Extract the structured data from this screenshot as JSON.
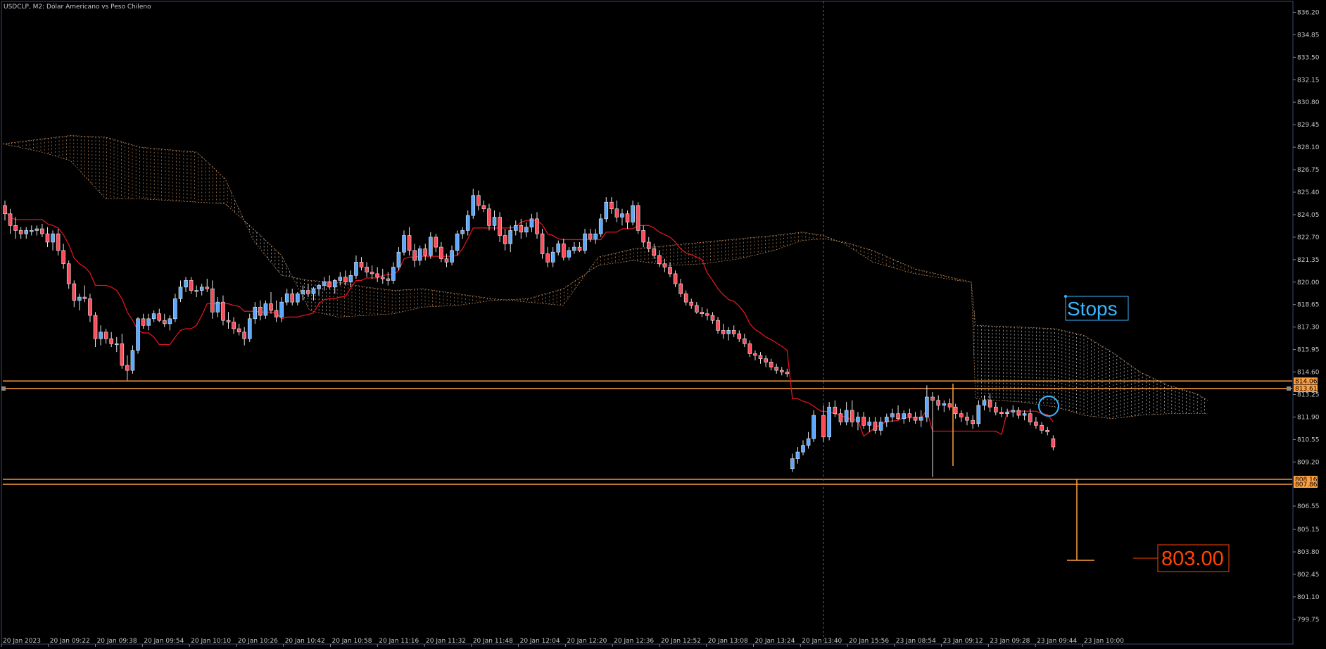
{
  "window": {
    "title": "USDCLP, M2:  Dólar Americano vs Peso Chileno"
  },
  "colors": {
    "background": "#000000",
    "frame": "#3a4a78",
    "bull_candle": "#5aa8ff",
    "bear_candle": "#ff4a5a",
    "kijun_line": "#e0141e",
    "cloud_dots": "#c89060",
    "cloud_dots_light": "#d8d8d8",
    "level_line": "#ffa040",
    "stops_label": "#3ab6ff",
    "target_label": "#ff4500",
    "vertical_separator": "#3c6cb4"
  },
  "price_axis": {
    "ticks": [
      "836.20",
      "834.85",
      "833.50",
      "832.15",
      "830.80",
      "829.45",
      "828.10",
      "826.75",
      "825.40",
      "824.05",
      "822.70",
      "821.35",
      "820.00",
      "818.65",
      "817.30",
      "815.95",
      "814.60",
      "813.25",
      "811.90",
      "810.55",
      "809.20",
      "806.55",
      "805.15",
      "803.80",
      "802.45",
      "801.10",
      "799.75"
    ],
    "level_labels": [
      "814.06",
      "813.61",
      "808.16",
      "807.86"
    ]
  },
  "time_axis": {
    "ticks": [
      "20 Jan 2023",
      "20 Jan 09:22",
      "20 Jan 09:38",
      "20 Jan 09:54",
      "20 Jan 10:10",
      "20 Jan 10:26",
      "20 Jan 10:42",
      "20 Jan 10:58",
      "20 Jan 11:16",
      "20 Jan 11:32",
      "20 Jan 11:48",
      "20 Jan 12:04",
      "20 Jan 12:20",
      "20 Jan 12:36",
      "20 Jan 12:52",
      "20 Jan 13:08",
      "20 Jan 13:24",
      "20 Jan 13:40",
      "20 Jan 15:56",
      "23 Jan 08:54",
      "23 Jan 09:12",
      "23 Jan 09:28",
      "23 Jan 09:44",
      "23 Jan 10:00"
    ]
  },
  "annotations": {
    "stops_label": "Stops",
    "target_label": "803.00"
  },
  "chart_data": {
    "type": "candlestick",
    "symbol": "USDCLP",
    "timeframe": "M2",
    "ylim": [
      798.9,
      836.6
    ],
    "horizontal_levels": [
      814.06,
      813.61,
      808.16,
      807.86
    ],
    "target_price": 803.0,
    "candles": [
      [
        824.6,
        824.9,
        823.7,
        824.1
      ],
      [
        824.1,
        824.4,
        822.9,
        823.4
      ],
      [
        823.4,
        823.9,
        822.6,
        823.1
      ],
      [
        823.1,
        823.3,
        822.6,
        822.9
      ],
      [
        822.9,
        823.3,
        822.6,
        823.1
      ],
      [
        823.1,
        823.4,
        822.8,
        823.1
      ],
      [
        823.1,
        823.4,
        822.8,
        823.2
      ],
      [
        823.2,
        823.5,
        822.7,
        822.9
      ],
      [
        822.9,
        823.3,
        822.1,
        822.4
      ],
      [
        822.4,
        823.1,
        821.9,
        822.9
      ],
      [
        822.9,
        823.2,
        821.6,
        821.9
      ],
      [
        821.9,
        822.3,
        820.8,
        821.1
      ],
      [
        821.1,
        821.3,
        819.6,
        819.9
      ],
      [
        819.9,
        820.1,
        818.5,
        818.9
      ],
      [
        818.9,
        819.3,
        818.3,
        819.1
      ],
      [
        819.1,
        819.8,
        818.8,
        819.0
      ],
      [
        819.0,
        819.3,
        817.6,
        818.0
      ],
      [
        818.0,
        818.2,
        816.1,
        816.6
      ],
      [
        816.6,
        817.4,
        816.2,
        817.0
      ],
      [
        817.0,
        817.2,
        816.3,
        816.6
      ],
      [
        816.6,
        817.0,
        816.1,
        816.3
      ],
      [
        816.3,
        816.7,
        815.8,
        816.3
      ],
      [
        816.3,
        816.9,
        814.8,
        815.0
      ],
      [
        815.0,
        815.6,
        814.1,
        814.7
      ],
      [
        814.7,
        816.2,
        814.5,
        815.9
      ],
      [
        815.9,
        817.9,
        815.7,
        817.8
      ],
      [
        817.8,
        818.1,
        817.2,
        817.4
      ],
      [
        817.4,
        818.1,
        817.1,
        817.8
      ],
      [
        817.8,
        818.3,
        817.6,
        818.1
      ],
      [
        818.1,
        818.4,
        817.6,
        817.7
      ],
      [
        817.7,
        818.1,
        817.3,
        817.5
      ],
      [
        817.5,
        818.0,
        817.1,
        817.8
      ],
      [
        817.8,
        819.3,
        817.6,
        819.0
      ],
      [
        819.0,
        820.1,
        818.8,
        819.7
      ],
      [
        819.7,
        820.3,
        819.4,
        820.1
      ],
      [
        820.1,
        820.3,
        819.3,
        819.5
      ],
      [
        819.5,
        819.8,
        819.1,
        819.5
      ],
      [
        819.5,
        819.9,
        819.2,
        819.7
      ],
      [
        819.7,
        820.2,
        819.4,
        819.6
      ],
      [
        819.6,
        820.1,
        817.8,
        818.2
      ],
      [
        818.2,
        819.1,
        817.9,
        818.8
      ],
      [
        818.8,
        819.2,
        817.4,
        817.7
      ],
      [
        817.7,
        818.2,
        817.2,
        817.6
      ],
      [
        817.6,
        817.9,
        816.9,
        817.2
      ],
      [
        817.2,
        817.5,
        816.8,
        817.0
      ],
      [
        817.0,
        817.3,
        816.2,
        816.6
      ],
      [
        816.6,
        818.1,
        816.4,
        817.8
      ],
      [
        817.8,
        818.8,
        817.5,
        818.5
      ],
      [
        818.5,
        818.9,
        817.7,
        818.0
      ],
      [
        818.0,
        818.9,
        817.8,
        818.7
      ],
      [
        818.7,
        819.4,
        818.1,
        818.3
      ],
      [
        818.3,
        818.9,
        817.6,
        817.9
      ],
      [
        817.9,
        819.1,
        817.6,
        818.8
      ],
      [
        818.8,
        819.6,
        818.6,
        819.3
      ],
      [
        819.3,
        819.6,
        818.6,
        818.8
      ],
      [
        818.8,
        819.4,
        818.6,
        819.3
      ],
      [
        819.3,
        819.8,
        818.9,
        819.5
      ],
      [
        819.5,
        819.9,
        819.1,
        819.3
      ],
      [
        819.3,
        819.7,
        818.9,
        819.6
      ],
      [
        819.6,
        819.9,
        819.2,
        819.8
      ],
      [
        819.8,
        820.3,
        819.5,
        820.0
      ],
      [
        820.0,
        820.4,
        819.6,
        819.7
      ],
      [
        819.7,
        820.2,
        819.3,
        820.1
      ],
      [
        820.1,
        820.6,
        819.8,
        820.3
      ],
      [
        820.3,
        820.7,
        819.8,
        820.0
      ],
      [
        820.0,
        820.7,
        819.7,
        820.4
      ],
      [
        820.4,
        821.6,
        820.2,
        821.2
      ],
      [
        821.2,
        821.5,
        820.7,
        820.9
      ],
      [
        820.9,
        821.2,
        820.3,
        820.6
      ],
      [
        820.6,
        821.0,
        820.2,
        820.5
      ],
      [
        820.5,
        820.9,
        820.0,
        820.3
      ],
      [
        820.3,
        820.8,
        819.9,
        820.2
      ],
      [
        820.2,
        820.6,
        819.8,
        820.1
      ],
      [
        820.1,
        821.2,
        819.9,
        820.9
      ],
      [
        820.9,
        822.1,
        820.7,
        821.8
      ],
      [
        821.8,
        823.1,
        821.6,
        822.8
      ],
      [
        822.8,
        823.3,
        821.6,
        821.9
      ],
      [
        821.9,
        822.3,
        820.9,
        821.3
      ],
      [
        821.3,
        822.2,
        821.0,
        822.0
      ],
      [
        822.0,
        822.3,
        821.3,
        821.6
      ],
      [
        821.6,
        823.0,
        821.4,
        822.7
      ],
      [
        822.7,
        822.9,
        821.8,
        822.1
      ],
      [
        822.1,
        822.4,
        821.2,
        821.4
      ],
      [
        821.4,
        821.7,
        820.9,
        821.2
      ],
      [
        821.2,
        822.2,
        821.0,
        821.9
      ],
      [
        821.9,
        823.1,
        821.6,
        822.9
      ],
      [
        822.9,
        823.3,
        822.6,
        823.1
      ],
      [
        823.1,
        824.3,
        822.8,
        824.0
      ],
      [
        824.0,
        825.6,
        823.8,
        825.2
      ],
      [
        825.2,
        825.5,
        824.3,
        824.6
      ],
      [
        824.6,
        824.9,
        824.2,
        824.4
      ],
      [
        824.4,
        824.7,
        823.1,
        823.4
      ],
      [
        823.4,
        824.3,
        823.1,
        823.9
      ],
      [
        823.9,
        824.2,
        822.4,
        822.8
      ],
      [
        822.8,
        823.2,
        821.9,
        822.3
      ],
      [
        822.3,
        823.4,
        821.8,
        823.1
      ],
      [
        823.1,
        823.7,
        822.8,
        823.4
      ],
      [
        823.4,
        823.8,
        822.6,
        823.0
      ],
      [
        823.0,
        823.6,
        822.7,
        823.3
      ],
      [
        823.3,
        824.1,
        823.0,
        823.8
      ],
      [
        823.8,
        824.2,
        822.6,
        822.9
      ],
      [
        822.9,
        823.2,
        821.4,
        821.7
      ],
      [
        821.7,
        822.1,
        820.9,
        821.2
      ],
      [
        821.2,
        822.1,
        820.9,
        821.8
      ],
      [
        821.8,
        822.5,
        821.6,
        822.3
      ],
      [
        822.3,
        822.6,
        821.3,
        821.5
      ],
      [
        821.5,
        822.1,
        821.3,
        821.9
      ],
      [
        821.9,
        822.4,
        821.7,
        822.1
      ],
      [
        822.1,
        822.4,
        821.8,
        821.9
      ],
      [
        821.9,
        823.2,
        821.7,
        822.9
      ],
      [
        822.9,
        823.2,
        822.4,
        822.6
      ],
      [
        822.6,
        823.2,
        822.3,
        822.9
      ],
      [
        822.9,
        824.1,
        822.7,
        823.8
      ],
      [
        823.8,
        825.1,
        823.6,
        824.8
      ],
      [
        824.8,
        825.1,
        824.1,
        824.4
      ],
      [
        824.4,
        824.9,
        823.6,
        823.9
      ],
      [
        823.9,
        824.4,
        823.4,
        824.1
      ],
      [
        824.1,
        824.3,
        823.2,
        823.6
      ],
      [
        823.6,
        824.9,
        823.4,
        824.6
      ],
      [
        824.6,
        824.8,
        822.9,
        823.1
      ],
      [
        823.1,
        823.4,
        822.1,
        822.4
      ],
      [
        822.4,
        822.7,
        821.8,
        822.0
      ],
      [
        822.0,
        822.3,
        821.4,
        821.6
      ],
      [
        821.6,
        821.9,
        820.9,
        821.1
      ],
      [
        821.1,
        821.4,
        820.6,
        820.9
      ],
      [
        820.9,
        821.2,
        820.3,
        820.5
      ],
      [
        820.5,
        820.7,
        819.7,
        819.9
      ],
      [
        819.9,
        820.2,
        819.1,
        819.3
      ],
      [
        819.3,
        819.5,
        818.6,
        818.8
      ],
      [
        818.8,
        819.0,
        818.4,
        818.6
      ],
      [
        818.6,
        818.8,
        818.1,
        818.2
      ],
      [
        818.2,
        818.5,
        817.9,
        818.1
      ],
      [
        818.1,
        818.4,
        817.7,
        818.0
      ],
      [
        818.0,
        818.2,
        817.5,
        817.7
      ],
      [
        817.7,
        817.9,
        816.9,
        817.1
      ],
      [
        817.1,
        817.5,
        816.6,
        816.9
      ],
      [
        816.9,
        817.3,
        816.5,
        817.1
      ],
      [
        817.1,
        817.4,
        816.7,
        816.9
      ],
      [
        816.9,
        817.1,
        816.4,
        816.6
      ],
      [
        816.6,
        816.9,
        816.1,
        816.3
      ],
      [
        816.3,
        816.5,
        815.5,
        815.7
      ],
      [
        815.7,
        815.9,
        815.3,
        815.6
      ],
      [
        815.6,
        815.8,
        815.1,
        815.4
      ],
      [
        815.4,
        815.6,
        814.9,
        815.2
      ],
      [
        815.2,
        815.4,
        814.7,
        814.9
      ],
      [
        814.9,
        815.1,
        814.5,
        814.7
      ],
      [
        814.7,
        814.9,
        814.4,
        814.6
      ],
      [
        814.6,
        814.8,
        814.3,
        814.5
      ],
      [
        808.8,
        809.7,
        808.6,
        809.4
      ],
      [
        809.4,
        810.1,
        809.1,
        809.8
      ],
      [
        809.8,
        810.5,
        809.6,
        810.2
      ],
      [
        810.2,
        811.0,
        810.0,
        810.6
      ],
      [
        810.6,
        812.3,
        810.4,
        812.0
      ],
      [
        812.0,
        812.6,
        810.4,
        810.7
      ],
      [
        810.7,
        812.8,
        810.5,
        812.5
      ],
      [
        812.5,
        812.9,
        811.9,
        812.1
      ],
      [
        812.1,
        812.4,
        811.4,
        811.6
      ],
      [
        811.6,
        812.8,
        811.4,
        812.3
      ],
      [
        812.3,
        812.9,
        811.3,
        811.6
      ],
      [
        811.6,
        812.2,
        811.1,
        811.9
      ],
      [
        811.9,
        812.2,
        811.2,
        811.4
      ],
      [
        811.4,
        811.9,
        811.0,
        811.6
      ],
      [
        811.6,
        811.9,
        810.9,
        811.1
      ],
      [
        811.1,
        811.9,
        810.8,
        811.6
      ],
      [
        811.6,
        812.1,
        811.3,
        811.9
      ],
      [
        811.9,
        812.4,
        811.6,
        812.1
      ],
      [
        812.1,
        812.6,
        811.7,
        811.8
      ],
      [
        811.8,
        812.3,
        811.5,
        812.1
      ],
      [
        812.1,
        812.4,
        811.6,
        811.9
      ],
      [
        811.9,
        812.2,
        811.5,
        811.7
      ],
      [
        811.7,
        812.3,
        811.3,
        811.9
      ],
      [
        811.9,
        813.8,
        811.6,
        813.1
      ],
      [
        813.1,
        813.4,
        808.3,
        812.9
      ],
      [
        812.9,
        813.2,
        812.3,
        812.6
      ],
      [
        812.6,
        812.9,
        812.2,
        812.7
      ],
      [
        812.7,
        813.0,
        812.3,
        812.5
      ],
      [
        812.5,
        812.7,
        811.8,
        812.1
      ],
      [
        812.1,
        812.3,
        811.6,
        811.9
      ],
      [
        811.9,
        812.2,
        811.4,
        811.7
      ],
      [
        811.7,
        812.0,
        811.2,
        811.5
      ],
      [
        811.5,
        812.9,
        811.3,
        812.6
      ],
      [
        812.6,
        813.2,
        812.3,
        812.9
      ],
      [
        812.9,
        813.3,
        812.2,
        812.5
      ],
      [
        812.5,
        812.8,
        812.0,
        812.2
      ],
      [
        812.2,
        812.5,
        811.9,
        812.1
      ],
      [
        812.1,
        812.4,
        811.9,
        812.2
      ],
      [
        812.2,
        812.6,
        811.9,
        812.3
      ],
      [
        812.3,
        812.5,
        811.8,
        812.0
      ],
      [
        812.0,
        812.3,
        811.7,
        812.1
      ],
      [
        812.1,
        812.4,
        811.4,
        811.6
      ],
      [
        811.6,
        811.9,
        811.2,
        811.4
      ],
      [
        811.4,
        811.6,
        810.9,
        811.1
      ],
      [
        811.1,
        811.3,
        810.8,
        811.0
      ],
      [
        810.6,
        810.8,
        809.9,
        810.1
      ]
    ]
  }
}
